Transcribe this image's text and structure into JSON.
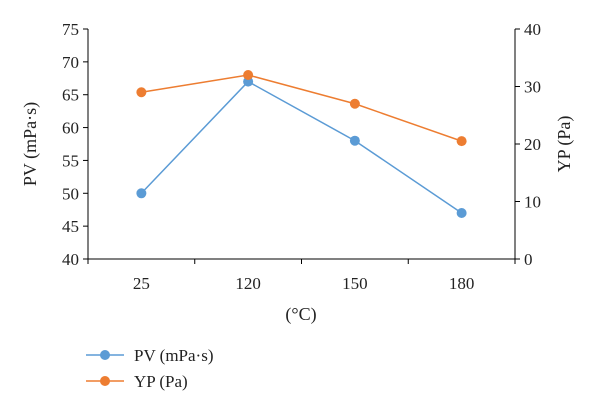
{
  "chart_data": {
    "type": "line",
    "categories": [
      "25",
      "120",
      "150",
      "180"
    ],
    "xlabel": "(°C)",
    "series": [
      {
        "name": "PV (mPa·s)",
        "axis": "left",
        "color": "#5b9bd5",
        "values": [
          50,
          67,
          58,
          47
        ]
      },
      {
        "name": "YP (Pa)",
        "axis": "right",
        "color": "#ed7d31",
        "values": [
          29,
          32,
          27,
          20.5
        ]
      }
    ],
    "y_left": {
      "label": "PV (mPa·s)",
      "ylim": [
        40,
        75
      ],
      "ticks": [
        "40",
        "45",
        "50",
        "55",
        "60",
        "65",
        "70",
        "75"
      ]
    },
    "y_right": {
      "label": "YP (Pa)",
      "ylim": [
        0,
        40
      ],
      "ticks": [
        "0",
        "10",
        "20",
        "30",
        "40"
      ]
    },
    "grid": false,
    "legend_position": "bottom-left"
  }
}
